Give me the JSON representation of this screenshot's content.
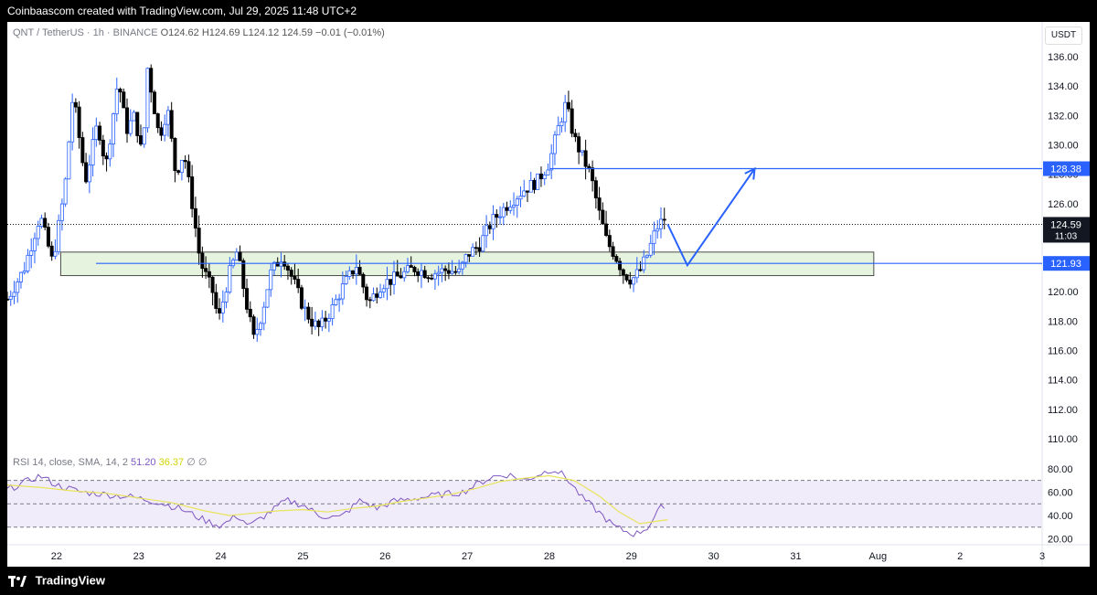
{
  "header": {
    "attribution": "Coinbaascom created with TradingView.com, Jul 29, 2025 11:48 UTC+2"
  },
  "footer": {
    "brand": "TradingView"
  },
  "legend": {
    "symbol": "QNT / TetherUS · 1h · BINANCE",
    "ohlc": "O124.62  H124.69  L124.12  124.59  −0.01 (−0.01%)"
  },
  "rsi_legend": {
    "label": "RSI 14, close, SMA, 14, 2",
    "rsi_value": "51.20",
    "sma_value": "36.37",
    "extra": "∅ ∅"
  },
  "currency": "USDT",
  "chart_data": {
    "type": "candlestick",
    "symbol": "QNT / TetherUS",
    "interval": "1h",
    "exchange": "BINANCE",
    "ylim": [
      109,
      137
    ],
    "y_ticks": [
      110,
      112,
      114,
      116,
      118,
      120,
      122,
      124,
      126,
      128,
      130,
      132,
      134,
      136
    ],
    "y_tick_labels": [
      "110.00",
      "112.00",
      "114.00",
      "116.00",
      "118.00",
      "120.00",
      "122.00",
      "124.00",
      "126.00",
      "128.00",
      "130.00",
      "132.00",
      "134.00",
      "136.00"
    ],
    "x_labels": [
      "22",
      "23",
      "24",
      "25",
      "26",
      "27",
      "28",
      "29",
      "30",
      "31",
      "Aug",
      "2",
      "3"
    ],
    "x_label_days": [
      22,
      23,
      24,
      25,
      26,
      27,
      28,
      29,
      30,
      31,
      32,
      33,
      34
    ],
    "x_range_days": [
      21.4,
      34.0
    ],
    "price_path": [
      [
        21.4,
        119.5
      ],
      [
        21.6,
        121.5
      ],
      [
        21.8,
        125.2
      ],
      [
        21.95,
        122
      ],
      [
        22.1,
        127
      ],
      [
        22.2,
        133.5
      ],
      [
        22.35,
        127.5
      ],
      [
        22.5,
        131.5
      ],
      [
        22.6,
        128.5
      ],
      [
        22.75,
        134.5
      ],
      [
        22.85,
        131
      ],
      [
        22.95,
        132
      ],
      [
        23.05,
        129
      ],
      [
        23.1,
        135.5
      ],
      [
        23.25,
        130.5
      ],
      [
        23.35,
        132.5
      ],
      [
        23.45,
        128
      ],
      [
        23.55,
        129.5
      ],
      [
        23.65,
        126
      ],
      [
        23.75,
        122
      ],
      [
        23.9,
        120
      ],
      [
        23.97,
        118
      ],
      [
        24.1,
        121.2
      ],
      [
        24.2,
        122.8
      ],
      [
        24.3,
        119.5
      ],
      [
        24.4,
        116.8
      ],
      [
        24.5,
        118.5
      ],
      [
        24.6,
        121.2
      ],
      [
        24.75,
        122.5
      ],
      [
        24.9,
        120.5
      ],
      [
        25.0,
        119
      ],
      [
        25.1,
        118
      ],
      [
        25.2,
        117.5
      ],
      [
        25.35,
        118.8
      ],
      [
        25.5,
        120.5
      ],
      [
        25.65,
        121.8
      ],
      [
        25.8,
        119.2
      ],
      [
        25.95,
        120.5
      ],
      [
        26.15,
        121
      ],
      [
        26.35,
        121.6
      ],
      [
        26.55,
        121.2
      ],
      [
        26.75,
        121.5
      ],
      [
        26.9,
        121.3
      ],
      [
        27.0,
        122.5
      ],
      [
        27.15,
        123.2
      ],
      [
        27.3,
        124.8
      ],
      [
        27.5,
        126
      ],
      [
        27.7,
        127
      ],
      [
        27.85,
        127.5
      ],
      [
        28.0,
        128.8
      ],
      [
        28.1,
        131
      ],
      [
        28.2,
        132.8
      ],
      [
        28.3,
        130.5
      ],
      [
        28.4,
        129.2
      ],
      [
        28.5,
        128
      ],
      [
        28.6,
        125.5
      ],
      [
        28.7,
        123.4
      ],
      [
        28.8,
        122.5
      ],
      [
        28.9,
        121.3
      ],
      [
        29.0,
        120.8
      ],
      [
        29.1,
        121.4
      ],
      [
        29.2,
        122.6
      ],
      [
        29.3,
        124.3
      ],
      [
        29.4,
        125
      ],
      [
        29.44,
        124.59
      ]
    ],
    "levels": [
      {
        "price": 128.38,
        "label": "128.38",
        "from_day": 28.0
      },
      {
        "price": 121.93,
        "label": "121.93",
        "from_day": 22.48
      }
    ],
    "last_price": {
      "price": 124.59,
      "label": "124.59",
      "countdown": "11:03"
    },
    "support_zone": {
      "from_day": 22.05,
      "to_day": 31.95,
      "low": 121.1,
      "high": 122.7
    },
    "projection_path": [
      [
        29.44,
        124.6
      ],
      [
        29.68,
        121.8
      ],
      [
        30.5,
        128.38
      ]
    ],
    "rsi": {
      "ylim": [
        15,
        90
      ],
      "y_ticks": [
        20,
        40,
        60,
        80
      ],
      "y_tick_labels": [
        "20.00",
        "40.00",
        "60.00",
        "80.00"
      ],
      "bands": [
        30,
        50,
        70
      ],
      "rsi_path": [
        [
          21.4,
          62
        ],
        [
          21.6,
          68
        ],
        [
          21.8,
          74
        ],
        [
          22.0,
          66
        ],
        [
          22.3,
          60
        ],
        [
          22.6,
          58
        ],
        [
          22.9,
          56
        ],
        [
          23.2,
          52
        ],
        [
          23.5,
          46
        ],
        [
          23.8,
          36
        ],
        [
          24.0,
          31
        ],
        [
          24.2,
          40
        ],
        [
          24.35,
          31
        ],
        [
          24.6,
          43
        ],
        [
          24.8,
          53
        ],
        [
          25.0,
          49
        ],
        [
          25.2,
          40
        ],
        [
          25.45,
          38
        ],
        [
          25.7,
          53
        ],
        [
          25.9,
          46
        ],
        [
          26.1,
          52
        ],
        [
          26.4,
          55
        ],
        [
          26.7,
          58
        ],
        [
          26.95,
          60
        ],
        [
          27.1,
          66
        ],
        [
          27.3,
          73
        ],
        [
          27.5,
          75
        ],
        [
          27.7,
          70
        ],
        [
          27.9,
          76
        ],
        [
          28.05,
          80
        ],
        [
          28.2,
          73
        ],
        [
          28.4,
          55
        ],
        [
          28.6,
          43
        ],
        [
          28.8,
          30
        ],
        [
          28.95,
          26
        ],
        [
          29.05,
          24
        ],
        [
          29.2,
          30
        ],
        [
          29.35,
          46
        ],
        [
          29.44,
          51.2
        ]
      ],
      "sma_path": [
        [
          21.4,
          66
        ],
        [
          21.8,
          64
        ],
        [
          22.2,
          61
        ],
        [
          22.6,
          59
        ],
        [
          23.0,
          55
        ],
        [
          23.4,
          51
        ],
        [
          23.8,
          44
        ],
        [
          24.1,
          40
        ],
        [
          24.4,
          42
        ],
        [
          24.7,
          44
        ],
        [
          25.0,
          45
        ],
        [
          25.3,
          43
        ],
        [
          25.6,
          46
        ],
        [
          25.9,
          48
        ],
        [
          26.2,
          52
        ],
        [
          26.5,
          55
        ],
        [
          26.8,
          58
        ],
        [
          27.1,
          63
        ],
        [
          27.4,
          69
        ],
        [
          27.7,
          72
        ],
        [
          28.0,
          74
        ],
        [
          28.3,
          70
        ],
        [
          28.6,
          57
        ],
        [
          28.85,
          43
        ],
        [
          29.1,
          33
        ],
        [
          29.3,
          35
        ],
        [
          29.44,
          36.37
        ]
      ]
    }
  },
  "colors": {
    "candle_up": "#26a69a",
    "candle_down": "#000000",
    "candle_up_fill": "#2962ff",
    "level_line": "#2962ff",
    "support_zone": "#e6f4df",
    "rsi_line": "#7e57c2",
    "rsi_sma": "#e8e45a",
    "rsi_band": "#f1ecfa"
  }
}
